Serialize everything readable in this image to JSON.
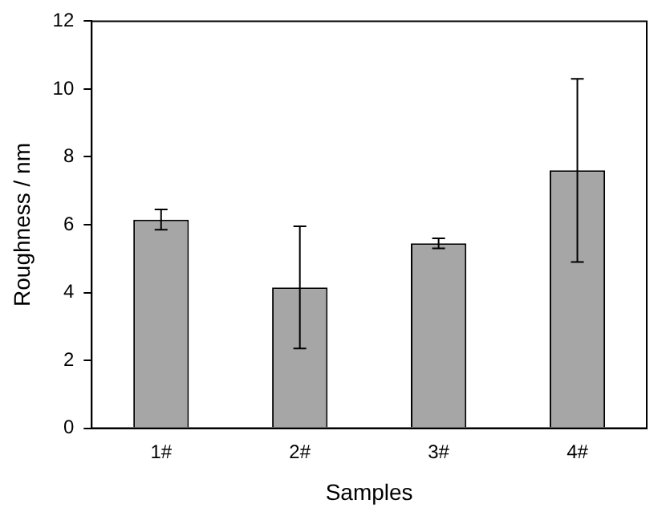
{
  "chart_data": {
    "type": "bar",
    "xlabel": "Samples",
    "ylabel": "Roughness / nm",
    "categories": [
      "1#",
      "2#",
      "3#",
      "4#"
    ],
    "values": [
      6.15,
      4.15,
      5.45,
      7.6
    ],
    "errors": [
      0.3,
      1.8,
      0.15,
      2.7
    ],
    "color": "#a6a6a6",
    "ylim": [
      0,
      12
    ],
    "yticks": [
      0,
      2,
      4,
      6,
      8,
      10,
      12
    ],
    "grid": false,
    "legend": false
  }
}
